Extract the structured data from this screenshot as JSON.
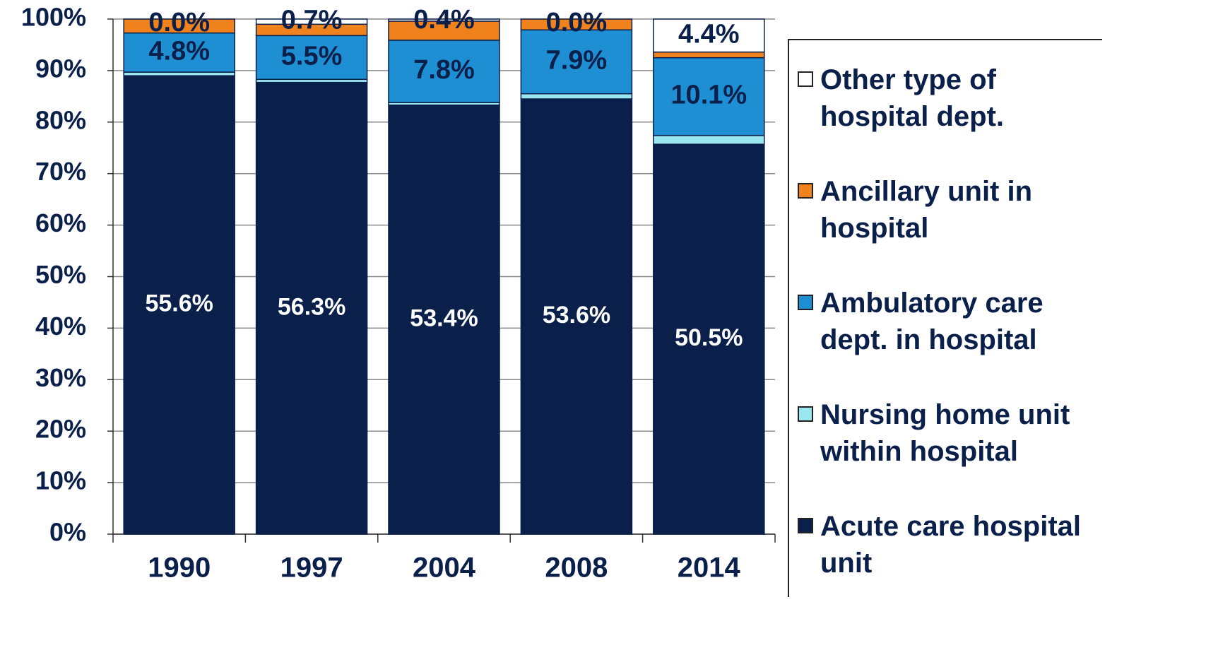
{
  "chart_data": {
    "type": "stacked_bar",
    "categories": [
      "1990",
      "1997",
      "2004",
      "2008",
      "2014"
    ],
    "ylim": [
      0,
      100
    ],
    "yticks": [
      {
        "value": 0,
        "label": "0%"
      },
      {
        "value": 10,
        "label": "10%"
      },
      {
        "value": 20,
        "label": "20%"
      },
      {
        "value": 30,
        "label": "30%"
      },
      {
        "value": 40,
        "label": "40%"
      },
      {
        "value": 50,
        "label": "50%"
      },
      {
        "value": 60,
        "label": "60%"
      },
      {
        "value": 70,
        "label": "70%"
      },
      {
        "value": 80,
        "label": "80%"
      },
      {
        "value": 90,
        "label": "90%"
      },
      {
        "value": 100,
        "label": "100%"
      }
    ],
    "grid": true,
    "legend": "right",
    "series": [
      {
        "name": "Acute care hospital unit",
        "color": "#0a1f4a",
        "values": [
          89.0,
          87.7,
          83.3,
          84.5,
          75.7
        ],
        "annotations": [
          "55.6%",
          "56.3%",
          "53.4%",
          "53.6%",
          "50.5%"
        ]
      },
      {
        "name": "Nursing home unit within hospital",
        "color": "#9be7f0",
        "values": [
          0.7,
          0.6,
          0.5,
          1.0,
          1.7
        ]
      },
      {
        "name": "Ambulatory care dept. in hospital",
        "color": "#1f8fd4",
        "values": [
          7.6,
          8.5,
          12.1,
          12.4,
          15.1
        ],
        "annotations": [
          "4.8%",
          "5.5%",
          "7.8%",
          "7.9%",
          "10.1%"
        ]
      },
      {
        "name": "Ancillary unit in hospital",
        "color": "#f0821e",
        "values": [
          2.7,
          2.2,
          3.7,
          2.1,
          1.1
        ]
      },
      {
        "name": "Other type of hospital dept.",
        "color": "#ffffff",
        "values": [
          0,
          1.0,
          0.4,
          0,
          6.4
        ],
        "annotations": [
          "0.0%",
          "0.7%",
          "0.4%",
          "0.0%",
          "4.4%"
        ]
      }
    ]
  }
}
